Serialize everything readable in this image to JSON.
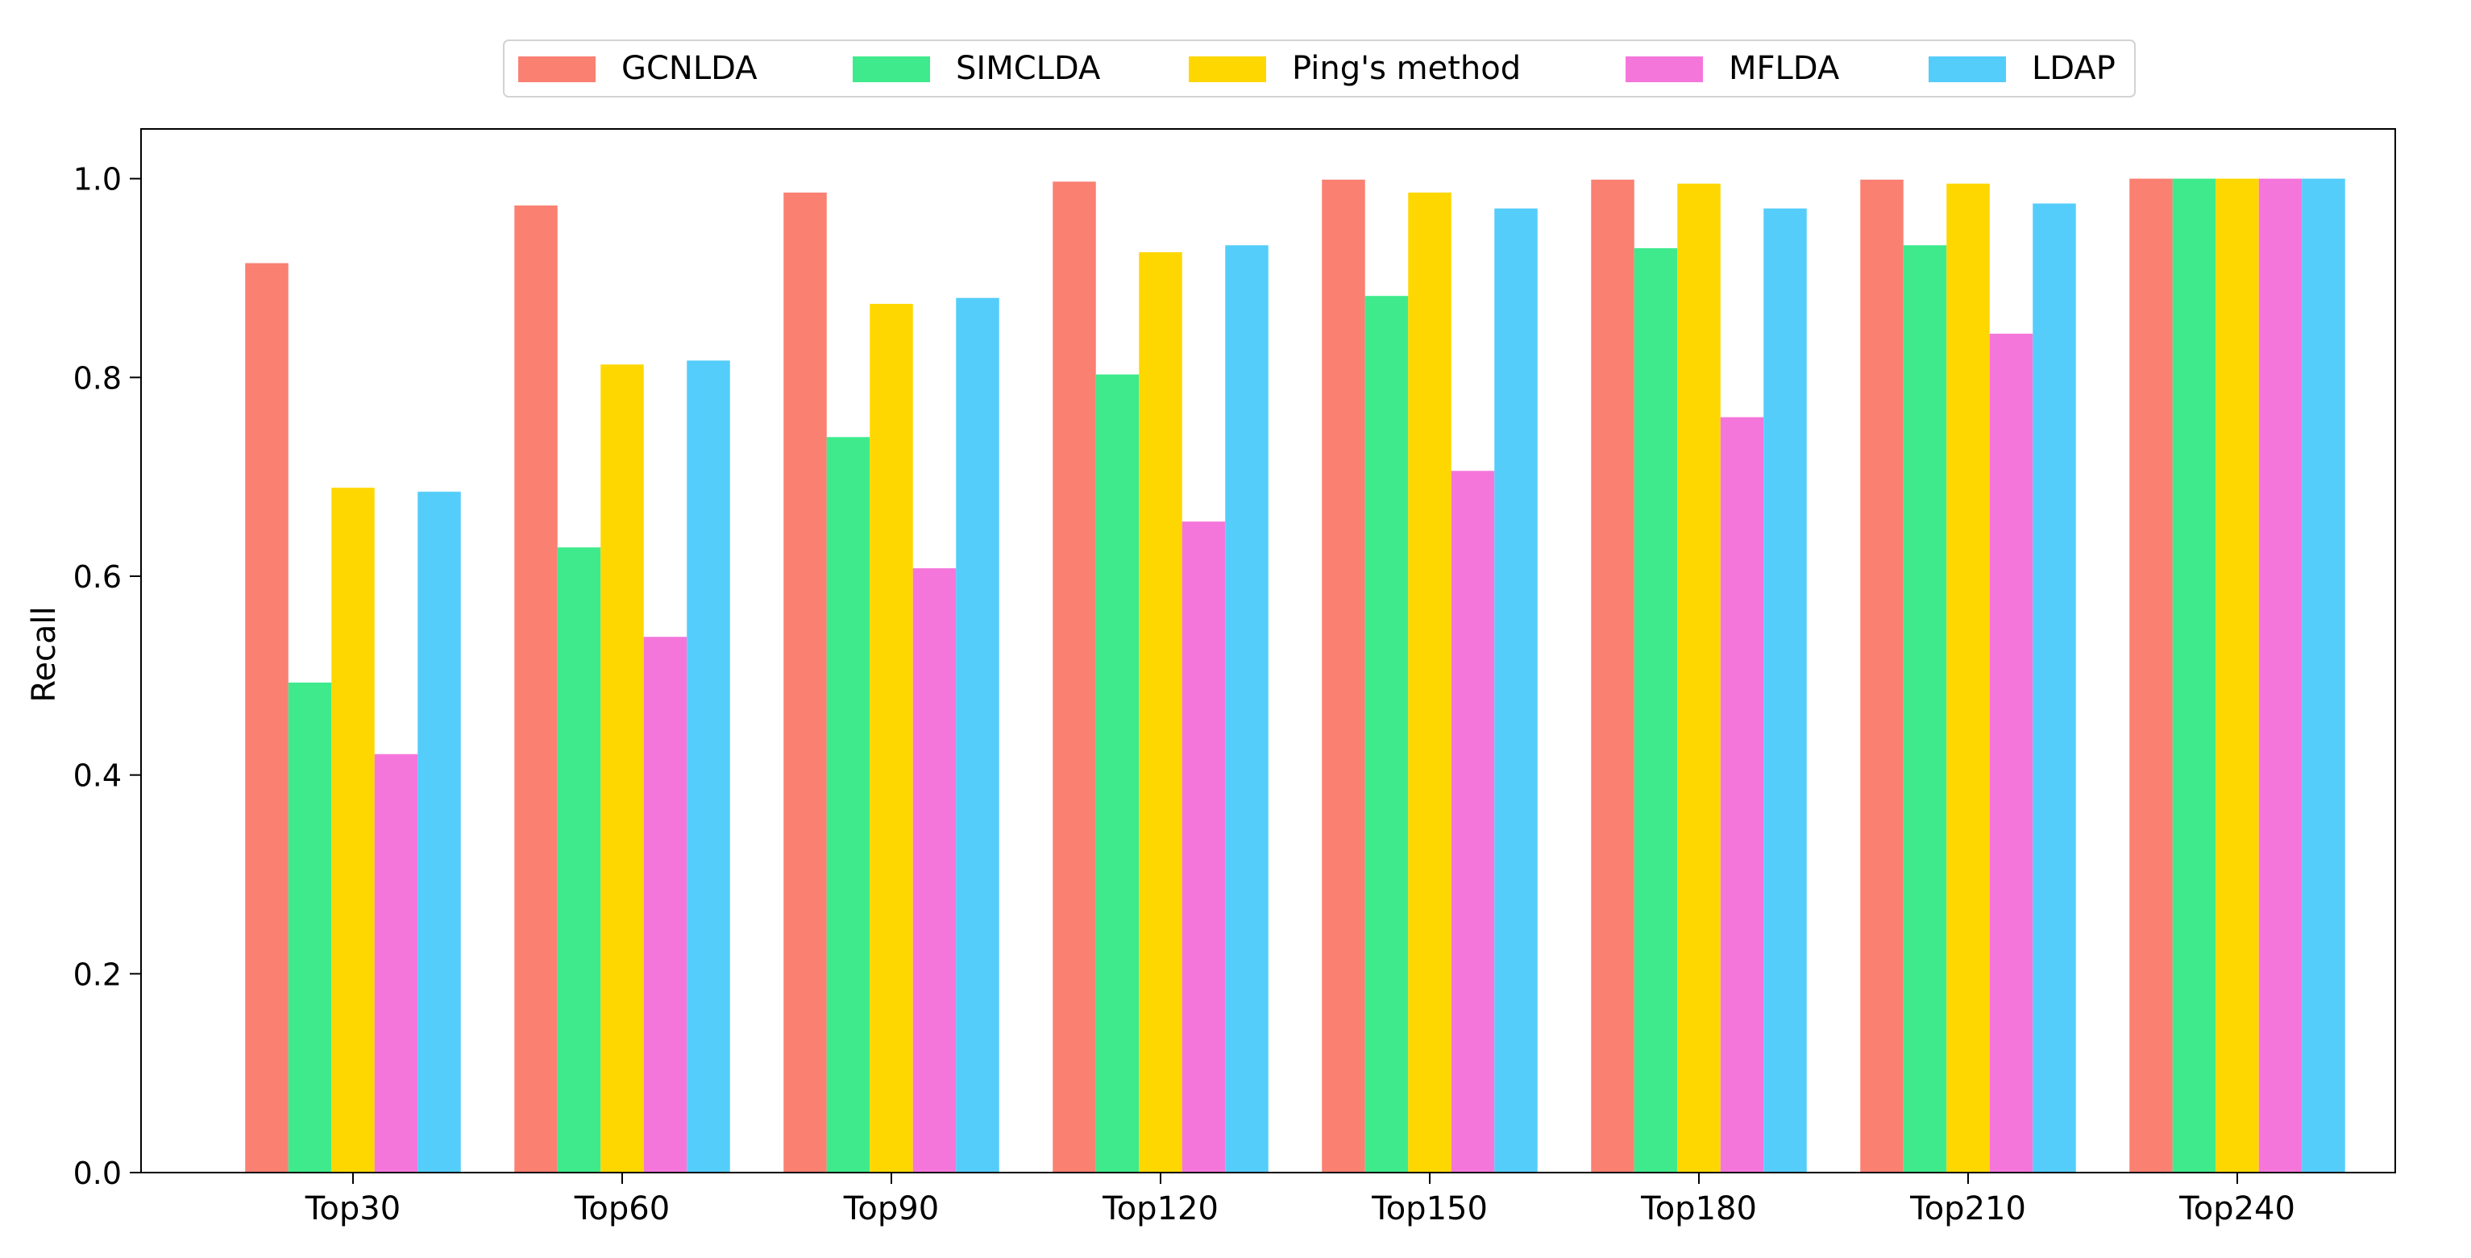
{
  "chart_data": {
    "type": "bar",
    "title": "",
    "xlabel": "",
    "ylabel": "Recall",
    "ylim": [
      0,
      1.05
    ],
    "yticks": [
      0.0,
      0.2,
      0.4,
      0.6,
      0.8,
      1.0
    ],
    "ytick_labels": [
      "0.0",
      "0.2",
      "0.4",
      "0.6",
      "0.8",
      "1.0"
    ],
    "categories": [
      "Top30",
      "Top60",
      "Top90",
      "Top120",
      "Top150",
      "Top180",
      "Top210",
      "Top240"
    ],
    "series": [
      {
        "name": "GCNLDA",
        "color": "#FA8072",
        "values": [
          0.915,
          0.973,
          0.986,
          0.997,
          0.999,
          0.999,
          0.999,
          1.0
        ]
      },
      {
        "name": "SIMCLDA",
        "color": "#3FEA8C",
        "values": [
          0.493,
          0.629,
          0.74,
          0.803,
          0.882,
          0.93,
          0.933,
          1.0
        ]
      },
      {
        "name": "Ping's method",
        "color": "#FFD700",
        "values": [
          0.689,
          0.813,
          0.874,
          0.926,
          0.986,
          0.995,
          0.995,
          1.0
        ]
      },
      {
        "name": "MFLDA",
        "color": "#F576DB",
        "values": [
          0.421,
          0.539,
          0.608,
          0.655,
          0.706,
          0.76,
          0.844,
          1.0
        ]
      },
      {
        "name": "LDAP",
        "color": "#54CDFB",
        "values": [
          0.685,
          0.817,
          0.88,
          0.933,
          0.97,
          0.97,
          0.975,
          1.0
        ]
      }
    ],
    "grid": false,
    "legend_position": "top-center"
  }
}
